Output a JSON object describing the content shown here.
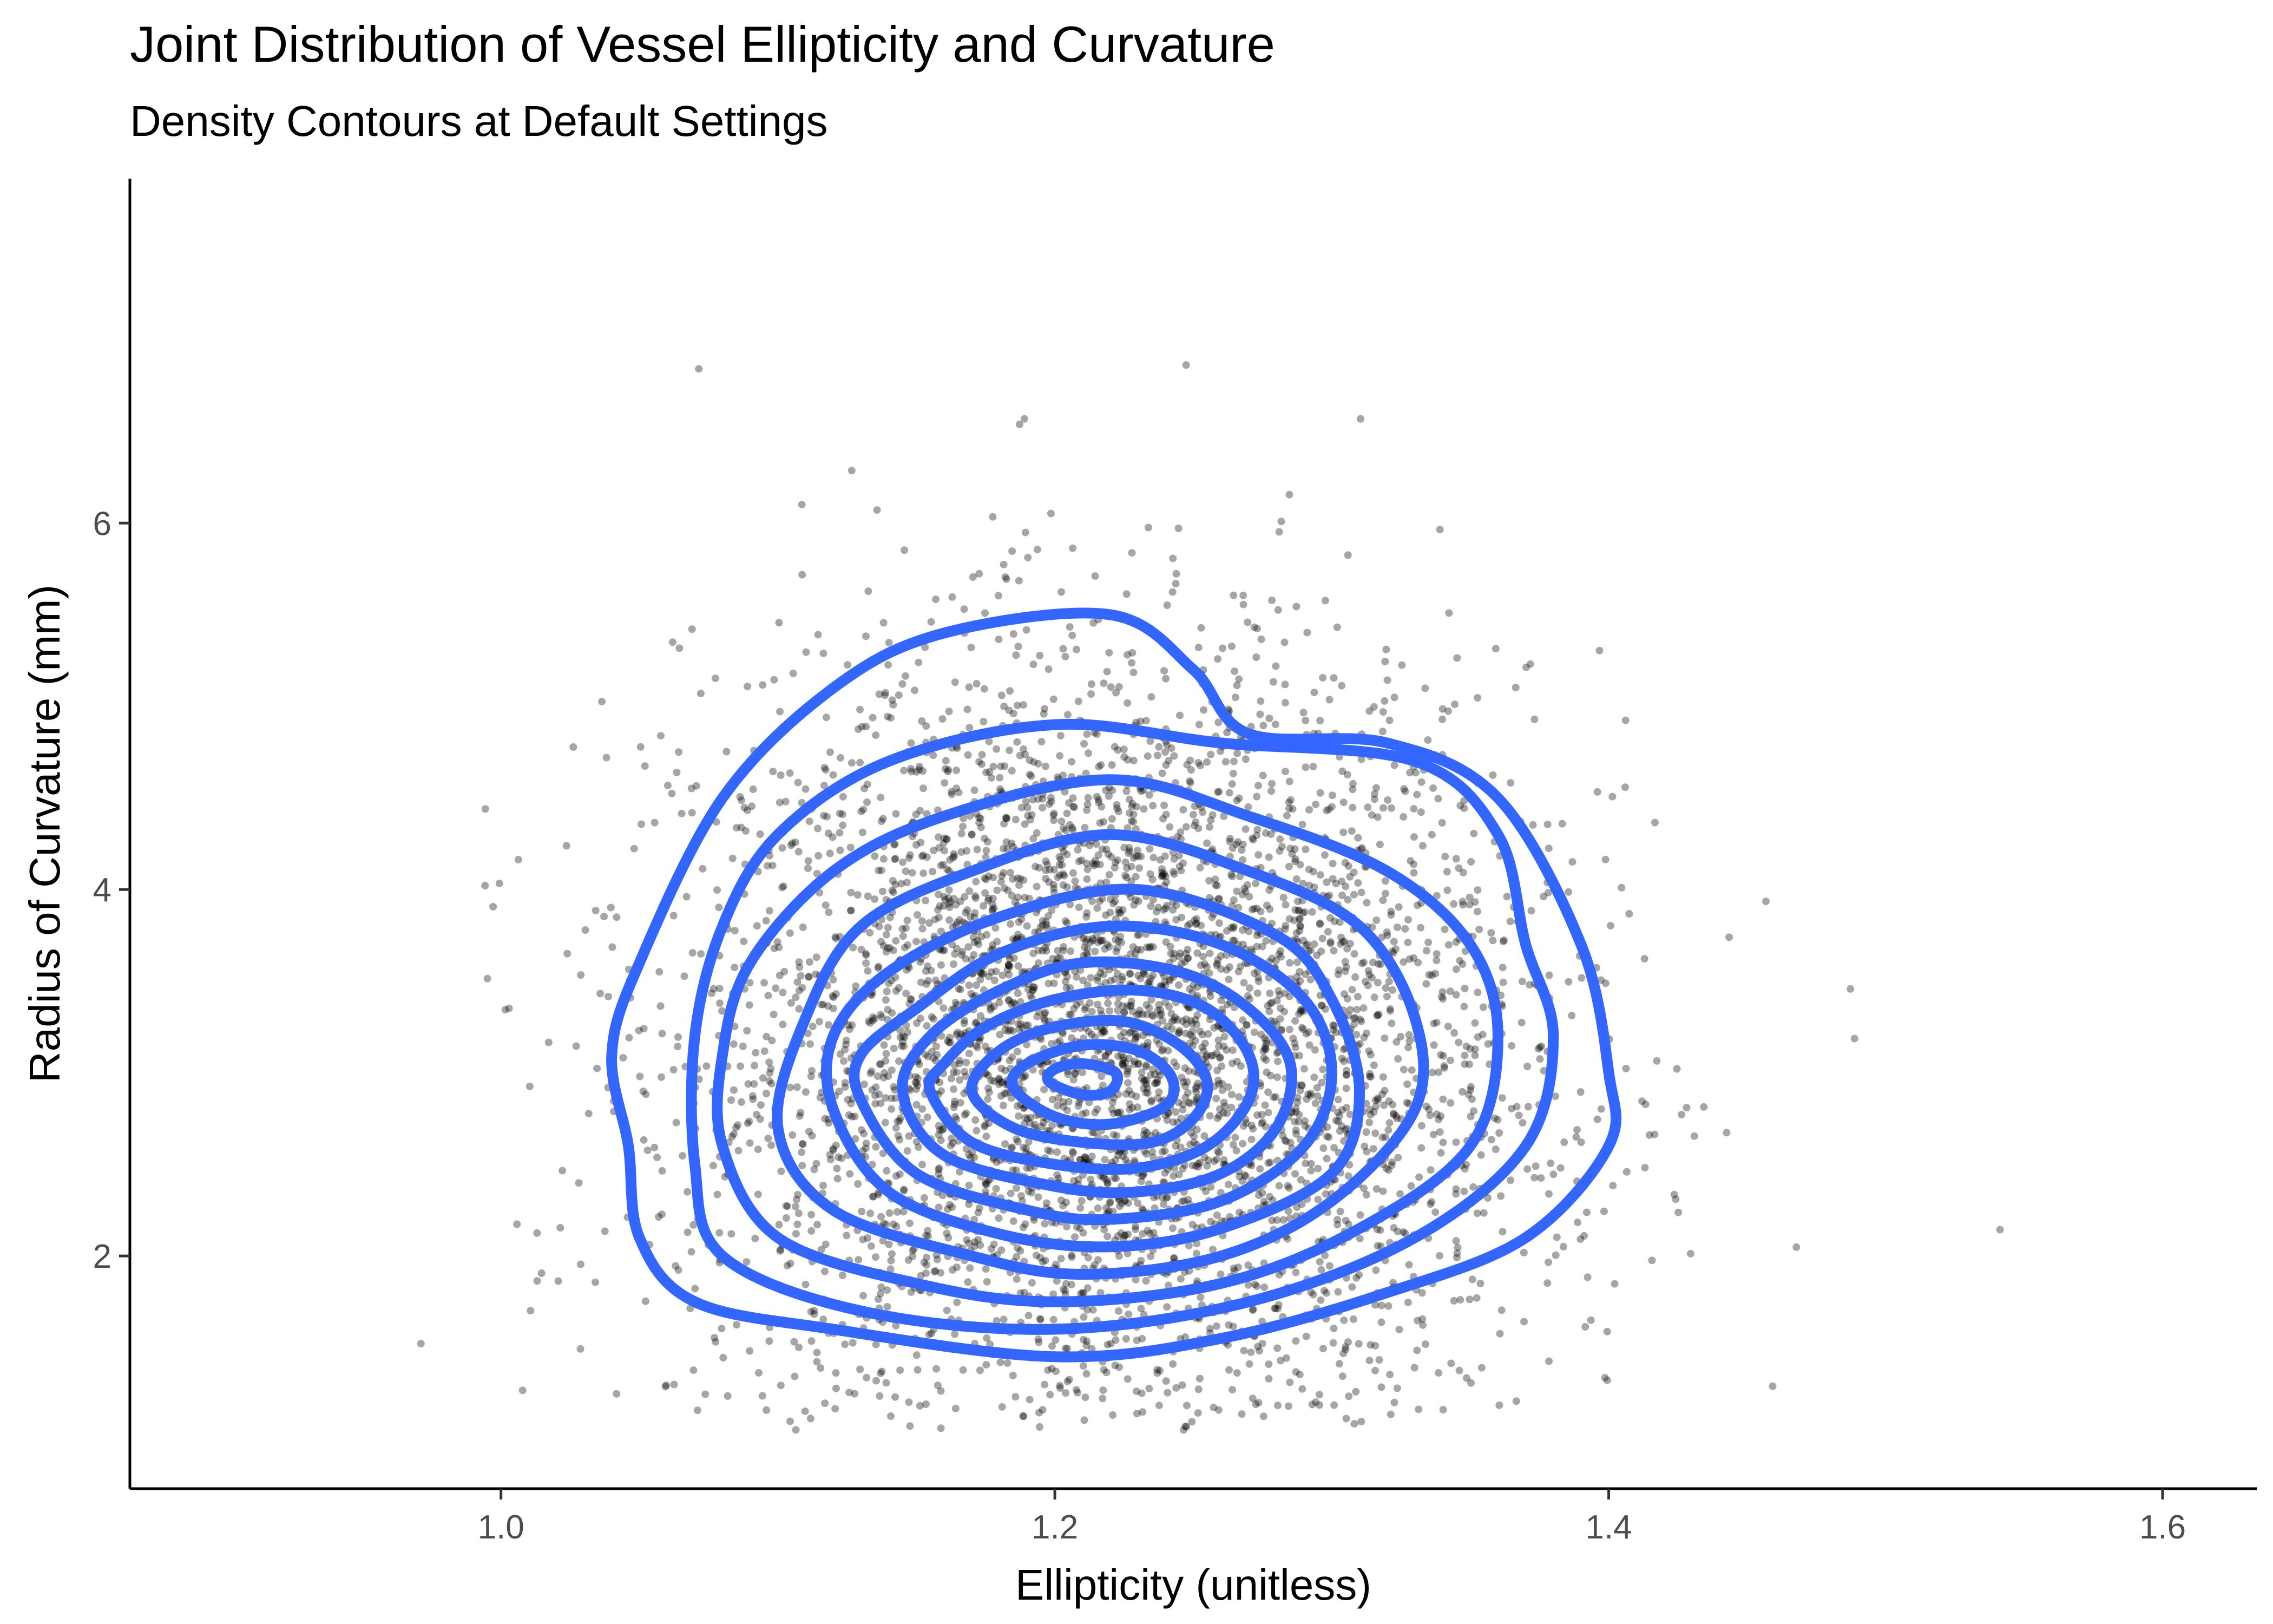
{
  "chart_data": {
    "type": "scatter",
    "title": "Joint Distribution of Vessel Ellipticity and Curvature",
    "subtitle": "Density Contours at Default Settings",
    "xlabel": "Ellipticity (unitless)",
    "ylabel": "Radius of Curvature (mm)",
    "xlim": [
      0.866,
      1.634
    ],
    "ylim": [
      0.73,
      7.88
    ],
    "x_ticks": [
      1.0,
      1.2,
      1.4,
      1.6
    ],
    "x_tick_labels": [
      "1.0",
      "1.2",
      "1.4",
      "1.6"
    ],
    "y_ticks": [
      2,
      4,
      6
    ],
    "y_tick_labels": [
      "2",
      "4",
      "6"
    ],
    "grid": false,
    "points": {
      "description_count": 5000,
      "color": "#000000",
      "opacity": 0.35,
      "center": {
        "x": 1.22,
        "y": 3.1
      },
      "sd": {
        "x": 0.075,
        "y": 1.05
      },
      "x_range": [
        0.97,
        1.56
      ],
      "y_range": [
        1.05,
        7.45
      ]
    },
    "contours": {
      "color": "#3366FF",
      "levels": [
        {
          "level": 1,
          "points": [
            [
              1.046,
              2.6
            ],
            [
              1.05,
              2.1
            ],
            [
              1.07,
              1.75
            ],
            [
              1.12,
              1.6
            ],
            [
              1.2,
              1.45
            ],
            [
              1.26,
              1.55
            ],
            [
              1.32,
              1.8
            ],
            [
              1.37,
              2.1
            ],
            [
              1.4,
              2.6
            ],
            [
              1.4,
              3.0
            ],
            [
              1.39,
              3.7
            ],
            [
              1.36,
              4.5
            ],
            [
              1.32,
              4.8
            ],
            [
              1.27,
              4.85
            ],
            [
              1.25,
              5.2
            ],
            [
              1.22,
              5.5
            ],
            [
              1.16,
              5.4
            ],
            [
              1.12,
              5.1
            ],
            [
              1.08,
              4.5
            ],
            [
              1.05,
              3.6
            ],
            [
              1.04,
              3.1
            ]
          ]
        },
        {
          "level": 2,
          "points": [
            [
              1.07,
              2.5
            ],
            [
              1.08,
              2.0
            ],
            [
              1.13,
              1.7
            ],
            [
              1.2,
              1.6
            ],
            [
              1.27,
              1.75
            ],
            [
              1.33,
              2.1
            ],
            [
              1.37,
              2.6
            ],
            [
              1.38,
              3.2
            ],
            [
              1.37,
              3.7
            ],
            [
              1.36,
              4.3
            ],
            [
              1.33,
              4.7
            ],
            [
              1.26,
              4.8
            ],
            [
              1.2,
              4.9
            ],
            [
              1.14,
              4.7
            ],
            [
              1.1,
              4.3
            ],
            [
              1.08,
              3.8
            ],
            [
              1.07,
              3.2
            ]
          ]
        },
        {
          "level": 3,
          "points": [
            [
              1.08,
              2.6
            ],
            [
              1.1,
              2.1
            ],
            [
              1.15,
              1.85
            ],
            [
              1.2,
              1.75
            ],
            [
              1.26,
              1.85
            ],
            [
              1.31,
              2.15
            ],
            [
              1.35,
              2.6
            ],
            [
              1.36,
              3.2
            ],
            [
              1.35,
              3.7
            ],
            [
              1.32,
              4.1
            ],
            [
              1.27,
              4.4
            ],
            [
              1.22,
              4.6
            ],
            [
              1.16,
              4.4
            ],
            [
              1.12,
              4.1
            ],
            [
              1.09,
              3.6
            ],
            [
              1.08,
              3.1
            ]
          ]
        },
        {
          "level": 4,
          "points": [
            [
              1.1,
              2.7
            ],
            [
              1.12,
              2.25
            ],
            [
              1.17,
              2.0
            ],
            [
              1.21,
              1.9
            ],
            [
              1.26,
              2.0
            ],
            [
              1.3,
              2.3
            ],
            [
              1.33,
              2.8
            ],
            [
              1.33,
              3.3
            ],
            [
              1.31,
              3.8
            ],
            [
              1.27,
              4.1
            ],
            [
              1.22,
              4.3
            ],
            [
              1.17,
              4.1
            ],
            [
              1.13,
              3.8
            ],
            [
              1.11,
              3.3
            ]
          ]
        },
        {
          "level": 5,
          "points": [
            [
              1.12,
              2.8
            ],
            [
              1.14,
              2.35
            ],
            [
              1.18,
              2.12
            ],
            [
              1.22,
              2.05
            ],
            [
              1.26,
              2.15
            ],
            [
              1.3,
              2.45
            ],
            [
              1.31,
              2.9
            ],
            [
              1.3,
              3.4
            ],
            [
              1.28,
              3.75
            ],
            [
              1.23,
              4.0
            ],
            [
              1.18,
              3.85
            ],
            [
              1.14,
              3.55
            ],
            [
              1.12,
              3.2
            ]
          ]
        },
        {
          "level": 6,
          "points": [
            [
              1.13,
              2.85
            ],
            [
              1.15,
              2.45
            ],
            [
              1.19,
              2.25
            ],
            [
              1.22,
              2.2
            ],
            [
              1.26,
              2.3
            ],
            [
              1.29,
              2.6
            ],
            [
              1.3,
              3.0
            ],
            [
              1.29,
              3.4
            ],
            [
              1.26,
              3.7
            ],
            [
              1.22,
              3.8
            ],
            [
              1.18,
              3.65
            ],
            [
              1.15,
              3.35
            ],
            [
              1.13,
              3.1
            ]
          ]
        },
        {
          "level": 7,
          "points": [
            [
              1.145,
              2.9
            ],
            [
              1.16,
              2.55
            ],
            [
              1.2,
              2.38
            ],
            [
              1.23,
              2.35
            ],
            [
              1.26,
              2.45
            ],
            [
              1.28,
              2.7
            ],
            [
              1.285,
              3.05
            ],
            [
              1.27,
              3.35
            ],
            [
              1.245,
              3.55
            ],
            [
              1.21,
              3.6
            ],
            [
              1.18,
              3.45
            ],
            [
              1.155,
              3.2
            ]
          ]
        },
        {
          "level": 8,
          "points": [
            [
              1.155,
              2.9
            ],
            [
              1.17,
              2.62
            ],
            [
              1.2,
              2.5
            ],
            [
              1.23,
              2.48
            ],
            [
              1.255,
              2.6
            ],
            [
              1.27,
              2.85
            ],
            [
              1.27,
              3.1
            ],
            [
              1.255,
              3.35
            ],
            [
              1.23,
              3.45
            ],
            [
              1.2,
              3.4
            ],
            [
              1.175,
              3.25
            ],
            [
              1.16,
              3.05
            ]
          ]
        },
        {
          "level": 9,
          "points": [
            [
              1.17,
              2.9
            ],
            [
              1.185,
              2.7
            ],
            [
              1.21,
              2.62
            ],
            [
              1.235,
              2.62
            ],
            [
              1.25,
              2.75
            ],
            [
              1.255,
              2.95
            ],
            [
              1.245,
              3.15
            ],
            [
              1.225,
              3.28
            ],
            [
              1.2,
              3.25
            ],
            [
              1.18,
              3.12
            ]
          ]
        },
        {
          "level": 10,
          "points": [
            [
              1.185,
              2.92
            ],
            [
              1.2,
              2.76
            ],
            [
              1.22,
              2.72
            ],
            [
              1.24,
              2.82
            ],
            [
              1.242,
              2.98
            ],
            [
              1.23,
              3.12
            ],
            [
              1.21,
              3.15
            ],
            [
              1.19,
              3.05
            ]
          ]
        },
        {
          "level": 11,
          "points": [
            [
              1.198,
              2.95
            ],
            [
              1.21,
              2.88
            ],
            [
              1.22,
              2.9
            ],
            [
              1.222,
              3.0
            ],
            [
              1.21,
              3.05
            ],
            [
              1.2,
              3.02
            ]
          ]
        }
      ]
    }
  }
}
